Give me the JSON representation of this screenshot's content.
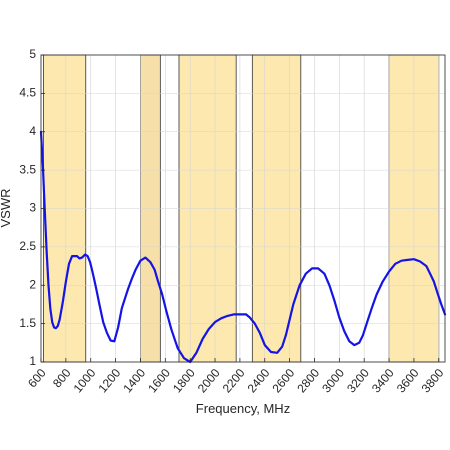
{
  "chart_data": {
    "type": "line",
    "title": "",
    "xlabel": "Frequency, MHz",
    "ylabel": "VSWR",
    "xlim": [
      600,
      3850
    ],
    "ylim": [
      1,
      5
    ],
    "xticks": [
      600,
      800,
      1000,
      1200,
      1400,
      1600,
      1800,
      2000,
      2200,
      2400,
      2600,
      2800,
      3000,
      3200,
      3400,
      3600,
      3800
    ],
    "xtick_labels": [
      "600",
      "800",
      "1000",
      "1200",
      "1400",
      "1600",
      "1800",
      "2000",
      "2200",
      "2400",
      "2600",
      "2800",
      "3000",
      "3200",
      "3400",
      "3600",
      "3800"
    ],
    "yticks": [
      1,
      1.5,
      2,
      2.5,
      3,
      3.5,
      4,
      4.5,
      5
    ],
    "ytick_labels": [
      "1",
      "1.5",
      "2",
      "2.5",
      "3",
      "3.5",
      "4",
      "4.5",
      "5"
    ],
    "grid": true,
    "bands": [
      {
        "x0": 620,
        "x1": 960,
        "color": "#fde9b0"
      },
      {
        "x0": 1400,
        "x1": 1560,
        "color": "#f6dfa8"
      },
      {
        "x0": 1710,
        "x1": 2170,
        "color": "#fde9b0"
      },
      {
        "x0": 2300,
        "x1": 2690,
        "color": "#fde9b0"
      },
      {
        "x0": 3400,
        "x1": 3800,
        "color": "#fde9b0"
      }
    ],
    "series": [
      {
        "color": "#1414e6",
        "x": [
          600,
          615,
          630,
          645,
          660,
          675,
          690,
          705,
          720,
          735,
          750,
          775,
          800,
          825,
          850,
          870,
          890,
          910,
          930,
          955,
          975,
          995,
          1010,
          1025,
          1045,
          1070,
          1100,
          1130,
          1160,
          1190,
          1220,
          1250,
          1280,
          1300,
          1330,
          1360,
          1400,
          1440,
          1480,
          1515,
          1540,
          1575,
          1610,
          1650,
          1700,
          1750,
          1800,
          1850,
          1900,
          1950,
          2000,
          2050,
          2100,
          2150,
          2200,
          2250,
          2280,
          2320,
          2360,
          2400,
          2450,
          2500,
          2540,
          2570,
          2600,
          2630,
          2680,
          2730,
          2780,
          2830,
          2880,
          2920,
          2960,
          3000,
          3040,
          3080,
          3120,
          3160,
          3190,
          3220,
          3260,
          3300,
          3350,
          3400,
          3450,
          3500,
          3550,
          3600,
          3650,
          3700,
          3730,
          3760,
          3790,
          3820,
          3850
        ],
        "y": [
          4.0,
          3.55,
          3.0,
          2.45,
          2.0,
          1.7,
          1.52,
          1.45,
          1.44,
          1.47,
          1.55,
          1.78,
          2.05,
          2.28,
          2.38,
          2.38,
          2.38,
          2.35,
          2.36,
          2.4,
          2.38,
          2.3,
          2.2,
          2.1,
          1.95,
          1.75,
          1.52,
          1.38,
          1.28,
          1.27,
          1.45,
          1.7,
          1.85,
          1.95,
          2.08,
          2.2,
          2.32,
          2.36,
          2.3,
          2.2,
          2.06,
          1.88,
          1.65,
          1.42,
          1.18,
          1.05,
          1.0,
          1.12,
          1.3,
          1.43,
          1.52,
          1.57,
          1.6,
          1.62,
          1.62,
          1.62,
          1.58,
          1.5,
          1.38,
          1.22,
          1.13,
          1.12,
          1.2,
          1.35,
          1.55,
          1.75,
          2.0,
          2.15,
          2.22,
          2.22,
          2.15,
          2.0,
          1.8,
          1.58,
          1.4,
          1.27,
          1.22,
          1.25,
          1.35,
          1.5,
          1.7,
          1.88,
          2.05,
          2.18,
          2.28,
          2.32,
          2.33,
          2.34,
          2.31,
          2.25,
          2.15,
          2.05,
          1.9,
          1.75,
          1.62
        ]
      }
    ]
  }
}
